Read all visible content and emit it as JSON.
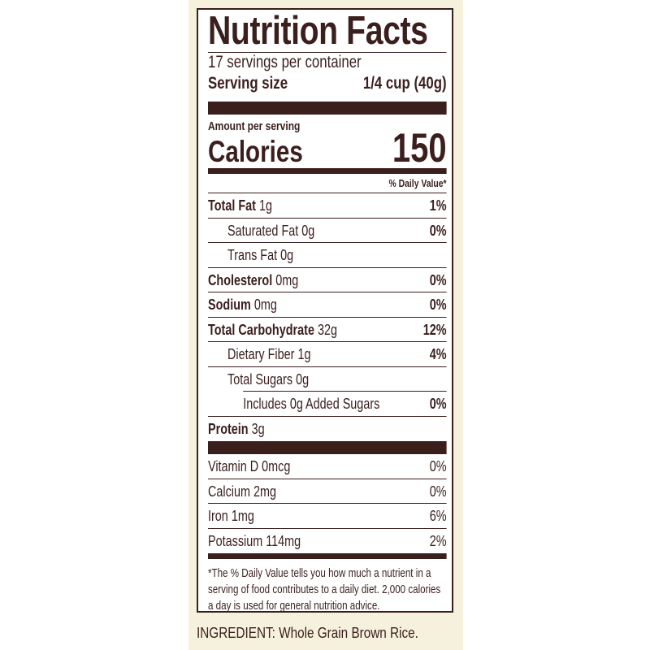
{
  "title": "Nutrition Facts",
  "servings_per_container": "17 servings per container",
  "serving_size": {
    "label": "Serving size",
    "value": "1/4 cup (40g)"
  },
  "amount_per_serving": "Amount per serving",
  "calories": {
    "label": "Calories",
    "value": "150"
  },
  "daily_value_header": "% Daily Value*",
  "nutrients": [
    {
      "name": "Total Fat",
      "amount": "1g",
      "dv": "1%"
    },
    {
      "name": "Saturated Fat",
      "amount": "0g",
      "dv": "0%"
    },
    {
      "name": "Trans Fat",
      "amount": "0g",
      "dv": ""
    },
    {
      "name": "Cholesterol",
      "amount": "0mg",
      "dv": "0%"
    },
    {
      "name": "Sodium",
      "amount": "0mg",
      "dv": "0%"
    },
    {
      "name": "Total Carbohydrate",
      "amount": "32g",
      "dv": "12%"
    },
    {
      "name": "Dietary Fiber",
      "amount": "1g",
      "dv": "4%"
    },
    {
      "name": "Total Sugars",
      "amount": "0g",
      "dv": ""
    },
    {
      "name": "Includes 0g Added Sugars",
      "amount": "",
      "dv": "0%"
    },
    {
      "name": "Protein",
      "amount": "3g",
      "dv": ""
    }
  ],
  "vitamins": [
    {
      "label": "Vitamin D 0mcg",
      "dv": "0%"
    },
    {
      "label": "Calcium 2mg",
      "dv": "0%"
    },
    {
      "label": "Iron 1mg",
      "dv": "6%"
    },
    {
      "label": "Potassium 114mg",
      "dv": "2%"
    }
  ],
  "footnote": "*The % Daily Value tells you how much a nutrient in a serving of food contributes to a daily diet. 2,000 calories a day is used for general nutrition advice.",
  "ingredient": "INGREDIENT: Whole Grain Brown Rice.",
  "colors": {
    "ink": "#3a1f1d",
    "background": "#f6f1dd"
  }
}
